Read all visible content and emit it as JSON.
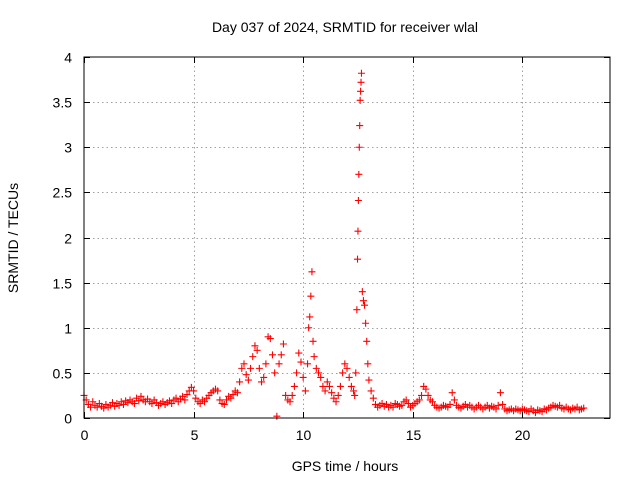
{
  "chart_data": {
    "type": "scatter",
    "title": "Day 037 of 2024, SRMTID for receiver wlal",
    "xlabel": "GPS time / hours",
    "ylabel": "SRMTID / TECUs",
    "xlim": [
      0,
      24
    ],
    "ylim": [
      0,
      4
    ],
    "xticks": [
      0,
      5,
      10,
      15,
      20
    ],
    "yticks": [
      0,
      0.5,
      1,
      1.5,
      2,
      2.5,
      3,
      3.5,
      4
    ],
    "xtick_labels": [
      "0",
      "5",
      "10",
      "15",
      "20"
    ],
    "ytick_labels": [
      "0",
      "0.5",
      "1",
      "1.5",
      "2",
      "2.5",
      "3",
      "3.5",
      "4"
    ],
    "grid": true,
    "marker": "plus",
    "color": "#ff0000",
    "series": [
      {
        "name": "SRMTID",
        "points": [
          [
            0.0,
            0.25
          ],
          [
            0.1,
            0.2
          ],
          [
            0.2,
            0.15
          ],
          [
            0.3,
            0.12
          ],
          [
            0.4,
            0.18
          ],
          [
            0.5,
            0.14
          ],
          [
            0.6,
            0.12
          ],
          [
            0.7,
            0.16
          ],
          [
            0.8,
            0.13
          ],
          [
            0.9,
            0.11
          ],
          [
            1.0,
            0.15
          ],
          [
            1.1,
            0.12
          ],
          [
            1.2,
            0.14
          ],
          [
            1.3,
            0.17
          ],
          [
            1.4,
            0.13
          ],
          [
            1.5,
            0.16
          ],
          [
            1.6,
            0.14
          ],
          [
            1.7,
            0.18
          ],
          [
            1.8,
            0.15
          ],
          [
            1.9,
            0.19
          ],
          [
            2.0,
            0.17
          ],
          [
            2.1,
            0.2
          ],
          [
            2.2,
            0.18
          ],
          [
            2.3,
            0.16
          ],
          [
            2.4,
            0.22
          ],
          [
            2.5,
            0.19
          ],
          [
            2.6,
            0.24
          ],
          [
            2.7,
            0.2
          ],
          [
            2.8,
            0.18
          ],
          [
            2.9,
            0.21
          ],
          [
            3.0,
            0.18
          ],
          [
            3.1,
            0.16
          ],
          [
            3.2,
            0.2
          ],
          [
            3.3,
            0.17
          ],
          [
            3.4,
            0.14
          ],
          [
            3.5,
            0.16
          ],
          [
            3.6,
            0.18
          ],
          [
            3.7,
            0.15
          ],
          [
            3.8,
            0.17
          ],
          [
            3.9,
            0.19
          ],
          [
            4.0,
            0.16
          ],
          [
            4.1,
            0.2
          ],
          [
            4.2,
            0.22
          ],
          [
            4.3,
            0.18
          ],
          [
            4.4,
            0.21
          ],
          [
            4.5,
            0.24
          ],
          [
            4.6,
            0.2
          ],
          [
            4.7,
            0.26
          ],
          [
            4.8,
            0.3
          ],
          [
            4.9,
            0.34
          ],
          [
            5.0,
            0.3
          ],
          [
            5.1,
            0.22
          ],
          [
            5.2,
            0.18
          ],
          [
            5.3,
            0.16
          ],
          [
            5.4,
            0.2
          ],
          [
            5.5,
            0.18
          ],
          [
            5.6,
            0.22
          ],
          [
            5.7,
            0.25
          ],
          [
            5.8,
            0.28
          ],
          [
            5.9,
            0.3
          ],
          [
            6.0,
            0.32
          ],
          [
            6.1,
            0.3
          ],
          [
            6.2,
            0.2
          ],
          [
            6.3,
            0.16
          ],
          [
            6.4,
            0.15
          ],
          [
            6.5,
            0.2
          ],
          [
            6.6,
            0.24
          ],
          [
            6.7,
            0.22
          ],
          [
            6.8,
            0.26
          ],
          [
            6.9,
            0.3
          ],
          [
            7.0,
            0.28
          ],
          [
            7.1,
            0.4
          ],
          [
            7.2,
            0.55
          ],
          [
            7.3,
            0.6
          ],
          [
            7.4,
            0.48
          ],
          [
            7.5,
            0.42
          ],
          [
            7.6,
            0.55
          ],
          [
            7.7,
            0.68
          ],
          [
            7.8,
            0.8
          ],
          [
            7.9,
            0.75
          ],
          [
            8.0,
            0.55
          ],
          [
            8.1,
            0.4
          ],
          [
            8.2,
            0.45
          ],
          [
            8.3,
            0.6
          ],
          [
            8.4,
            0.9
          ],
          [
            8.5,
            0.88
          ],
          [
            8.6,
            0.7
          ],
          [
            8.7,
            0.5
          ],
          [
            8.8,
            0.02
          ],
          [
            8.9,
            0.6
          ],
          [
            9.0,
            0.7
          ],
          [
            9.1,
            0.82
          ],
          [
            9.2,
            0.25
          ],
          [
            9.3,
            0.2
          ],
          [
            9.4,
            0.18
          ],
          [
            9.5,
            0.25
          ],
          [
            9.6,
            0.35
          ],
          [
            9.7,
            0.5
          ],
          [
            9.8,
            0.72
          ],
          [
            9.9,
            0.62
          ],
          [
            10.0,
            0.45
          ],
          [
            10.1,
            0.3
          ],
          [
            10.2,
            0.6
          ],
          [
            10.25,
            1.0
          ],
          [
            10.3,
            1.12
          ],
          [
            10.35,
            1.35
          ],
          [
            10.4,
            1.62
          ],
          [
            10.45,
            0.85
          ],
          [
            10.5,
            0.68
          ],
          [
            10.6,
            0.55
          ],
          [
            10.7,
            0.5
          ],
          [
            10.8,
            0.45
          ],
          [
            10.9,
            0.35
          ],
          [
            11.0,
            0.3
          ],
          [
            11.1,
            0.4
          ],
          [
            11.2,
            0.35
          ],
          [
            11.3,
            0.28
          ],
          [
            11.4,
            0.22
          ],
          [
            11.5,
            0.18
          ],
          [
            11.6,
            0.25
          ],
          [
            11.7,
            0.35
          ],
          [
            11.8,
            0.5
          ],
          [
            11.9,
            0.6
          ],
          [
            12.0,
            0.55
          ],
          [
            12.1,
            0.45
          ],
          [
            12.2,
            0.35
          ],
          [
            12.3,
            0.3
          ],
          [
            12.35,
            0.25
          ],
          [
            12.4,
            0.5
          ],
          [
            12.45,
            1.2
          ],
          [
            12.48,
            1.76
          ],
          [
            12.5,
            2.07
          ],
          [
            12.52,
            2.41
          ],
          [
            12.54,
            2.7
          ],
          [
            12.56,
            3.0
          ],
          [
            12.58,
            3.24
          ],
          [
            12.6,
            3.52
          ],
          [
            12.62,
            3.62
          ],
          [
            12.64,
            3.72
          ],
          [
            12.66,
            3.82
          ],
          [
            12.7,
            1.4
          ],
          [
            12.75,
            1.3
          ],
          [
            12.8,
            1.25
          ],
          [
            12.85,
            1.05
          ],
          [
            12.9,
            0.85
          ],
          [
            12.95,
            0.6
          ],
          [
            13.0,
            0.42
          ],
          [
            13.1,
            0.3
          ],
          [
            13.2,
            0.22
          ],
          [
            13.3,
            0.15
          ],
          [
            13.4,
            0.12
          ],
          [
            13.5,
            0.14
          ],
          [
            13.6,
            0.16
          ],
          [
            13.7,
            0.13
          ],
          [
            13.8,
            0.15
          ],
          [
            13.9,
            0.12
          ],
          [
            14.0,
            0.14
          ],
          [
            14.1,
            0.12
          ],
          [
            14.2,
            0.16
          ],
          [
            14.3,
            0.15
          ],
          [
            14.4,
            0.13
          ],
          [
            14.5,
            0.14
          ],
          [
            14.6,
            0.18
          ],
          [
            14.7,
            0.2
          ],
          [
            14.8,
            0.16
          ],
          [
            14.9,
            0.12
          ],
          [
            15.0,
            0.14
          ],
          [
            15.1,
            0.16
          ],
          [
            15.2,
            0.18
          ],
          [
            15.3,
            0.2
          ],
          [
            15.4,
            0.25
          ],
          [
            15.5,
            0.35
          ],
          [
            15.6,
            0.32
          ],
          [
            15.7,
            0.25
          ],
          [
            15.8,
            0.2
          ],
          [
            15.9,
            0.18
          ],
          [
            16.0,
            0.14
          ],
          [
            16.1,
            0.12
          ],
          [
            16.2,
            0.11
          ],
          [
            16.3,
            0.12
          ],
          [
            16.4,
            0.14
          ],
          [
            16.5,
            0.13
          ],
          [
            16.6,
            0.12
          ],
          [
            16.7,
            0.15
          ],
          [
            16.8,
            0.28
          ],
          [
            16.9,
            0.2
          ],
          [
            17.0,
            0.14
          ],
          [
            17.1,
            0.12
          ],
          [
            17.2,
            0.11
          ],
          [
            17.3,
            0.13
          ],
          [
            17.4,
            0.15
          ],
          [
            17.5,
            0.12
          ],
          [
            17.6,
            0.14
          ],
          [
            17.7,
            0.12
          ],
          [
            17.8,
            0.1
          ],
          [
            17.9,
            0.12
          ],
          [
            18.0,
            0.14
          ],
          [
            18.1,
            0.12
          ],
          [
            18.2,
            0.1
          ],
          [
            18.3,
            0.12
          ],
          [
            18.4,
            0.14
          ],
          [
            18.5,
            0.11
          ],
          [
            18.6,
            0.13
          ],
          [
            18.7,
            0.12
          ],
          [
            18.8,
            0.1
          ],
          [
            18.9,
            0.14
          ],
          [
            19.0,
            0.28
          ],
          [
            19.1,
            0.15
          ],
          [
            19.2,
            0.1
          ],
          [
            19.3,
            0.08
          ],
          [
            19.4,
            0.09
          ],
          [
            19.5,
            0.1
          ],
          [
            19.6,
            0.08
          ],
          [
            19.7,
            0.1
          ],
          [
            19.8,
            0.09
          ],
          [
            19.9,
            0.08
          ],
          [
            20.0,
            0.1
          ],
          [
            20.1,
            0.09
          ],
          [
            20.2,
            0.08
          ],
          [
            20.3,
            0.07
          ],
          [
            20.4,
            0.1
          ],
          [
            20.5,
            0.08
          ],
          [
            20.6,
            0.06
          ],
          [
            20.7,
            0.09
          ],
          [
            20.8,
            0.08
          ],
          [
            20.9,
            0.07
          ],
          [
            21.0,
            0.1
          ],
          [
            21.1,
            0.09
          ],
          [
            21.2,
            0.11
          ],
          [
            21.3,
            0.12
          ],
          [
            21.4,
            0.14
          ],
          [
            21.5,
            0.13
          ],
          [
            21.6,
            0.12
          ],
          [
            21.7,
            0.14
          ],
          [
            21.8,
            0.11
          ],
          [
            21.9,
            0.1
          ],
          [
            22.0,
            0.12
          ],
          [
            22.1,
            0.1
          ],
          [
            22.2,
            0.09
          ],
          [
            22.3,
            0.11
          ],
          [
            22.4,
            0.1
          ],
          [
            22.5,
            0.12
          ],
          [
            22.6,
            0.09
          ],
          [
            22.7,
            0.1
          ],
          [
            22.8,
            0.11
          ]
        ]
      }
    ]
  }
}
